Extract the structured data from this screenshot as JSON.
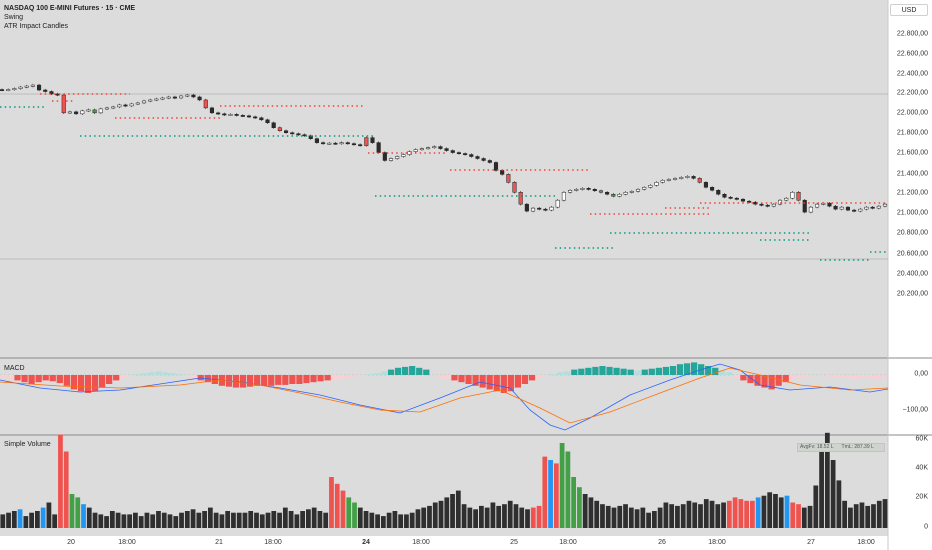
{
  "legend": {
    "symbol_title": "NASDAQ 100 E-MINI Futures · 15 · CME",
    "indicator_1": "Swing",
    "indicator_2": "ATR Impact Candles"
  },
  "currency_button": "USD",
  "price_axis": [
    "22.800,00",
    "22.600,00",
    "22.400,00",
    "22.200,00",
    "22.000,00",
    "21.800,00",
    "21.600,00",
    "21.400,00",
    "21.200,00",
    "21.000,00",
    "20.800,00",
    "20.600,00",
    "20.400,00",
    "20.200,00"
  ],
  "macd": {
    "label": "MACD",
    "axis": [
      "0,00",
      "−100,00"
    ]
  },
  "volume": {
    "label": "Simple Volume",
    "axis": [
      "60K",
      "40K",
      "20K",
      "0"
    ],
    "avg_label": "AvgFv: 18.52 L",
    "tml_label": "TmL: 287.39 L"
  },
  "time_axis": [
    {
      "label": "20",
      "bold": false
    },
    {
      "label": "18:00",
      "bold": false
    },
    {
      "label": "21",
      "bold": false
    },
    {
      "label": "18:00",
      "bold": false
    },
    {
      "label": "24",
      "bold": true
    },
    {
      "label": "18:00",
      "bold": false
    },
    {
      "label": "25",
      "bold": false
    },
    {
      "label": "18:00",
      "bold": false
    },
    {
      "label": "26",
      "bold": false
    },
    {
      "label": "18:00",
      "bold": false
    },
    {
      "label": "27",
      "bold": false
    },
    {
      "label": "18:00",
      "bold": false
    }
  ],
  "colors": {
    "bull_candle": "#ffffff",
    "bear_candle": "#2b2b2b",
    "impact_bear": "#ef5350",
    "impact_bull": "#43a047",
    "swing_high": "#f44336",
    "swing_low": "#089981",
    "macd_line": "#2962ff",
    "signal_line": "#ff6d00",
    "vol_blue": "#2196f3"
  }
}
